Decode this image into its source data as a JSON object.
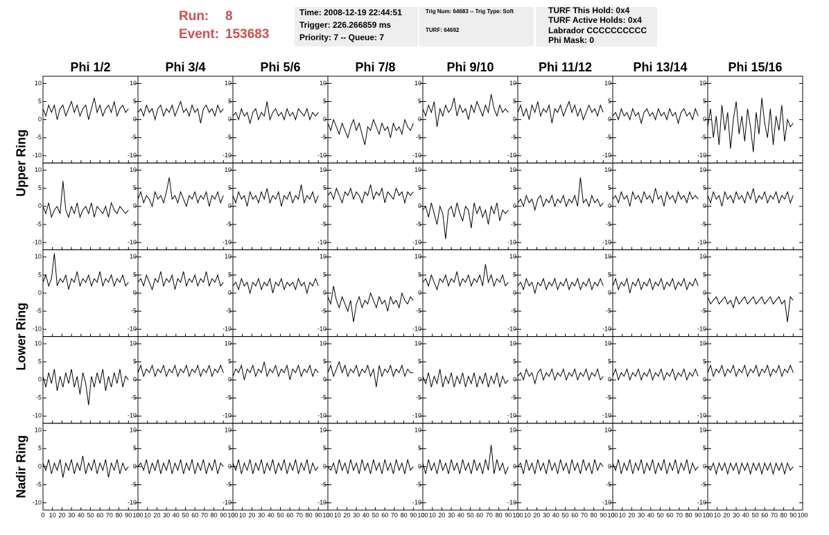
{
  "header": {
    "run_label": "Run:",
    "run": "8",
    "event_label": "Event:",
    "event": "153683",
    "box1": [
      "Time: 2008-12-19 22:44:51",
      "Trigger: 226.266859 ms",
      "Priority: 7 -- Queue: 7"
    ],
    "box2": [
      "Trig Num: 64683 -- Trig Type: Soft",
      "TURF: 64692"
    ],
    "box3": [
      "TURF This Hold: 0x4",
      "TURF Active Holds: 0x4",
      "Labrador CCCCCCCCCC",
      "Phi Mask: 0"
    ]
  },
  "chart_data": {
    "type": "line",
    "columns": [
      "Phi 1/2",
      "Phi 3/4",
      "Phi 5/6",
      "Phi 7/8",
      "Phi 9/10",
      "Phi 11/12",
      "Phi 13/14",
      "Phi 15/16"
    ],
    "rows": [
      "Upper Ring",
      "Lower Ring",
      "Nadir Ring"
    ],
    "color": "#000000",
    "xlim": [
      0,
      100
    ],
    "xticks": [
      0,
      10,
      20,
      30,
      40,
      50,
      60,
      70,
      80,
      90,
      100
    ],
    "ylim": [
      -12,
      12
    ],
    "yticks": [
      -10,
      -5,
      0,
      5,
      10
    ],
    "x": [
      0,
      3,
      6,
      9,
      12,
      15,
      18,
      21,
      24,
      27,
      30,
      33,
      36,
      39,
      42,
      45,
      48,
      51,
      54,
      57,
      60,
      63,
      66,
      69,
      72,
      75,
      78,
      81,
      84,
      87,
      90
    ],
    "panels": [
      [
        3,
        1,
        4,
        2,
        4,
        0,
        3,
        4,
        1,
        3,
        5,
        2,
        4,
        1,
        3,
        4,
        0,
        3,
        6,
        2,
        4,
        1,
        3,
        4,
        2,
        5,
        1,
        3,
        4,
        2,
        3
      ],
      [
        2,
        3,
        1,
        4,
        2,
        3,
        0,
        3,
        4,
        1,
        3,
        2,
        4,
        1,
        3,
        5,
        2,
        3,
        1,
        4,
        2,
        3,
        -1,
        3,
        4,
        2,
        3,
        1,
        4,
        2,
        3
      ],
      [
        1,
        2,
        0,
        3,
        1,
        2,
        -1,
        2,
        3,
        0,
        2,
        1,
        5,
        0,
        2,
        3,
        1,
        2,
        0,
        3,
        1,
        2,
        0,
        3,
        2,
        1,
        3,
        0,
        2,
        1,
        2
      ],
      [
        -1,
        -3,
        0,
        -2,
        -4,
        -1,
        -3,
        -5,
        -2,
        0,
        -3,
        -1,
        -4,
        -7,
        -2,
        -3,
        0,
        -2,
        -4,
        -1,
        -3,
        -2,
        -5,
        -1,
        -3,
        -2,
        -4,
        0,
        -2,
        -3,
        -1
      ],
      [
        3,
        1,
        4,
        2,
        5,
        -2,
        3,
        1,
        4,
        2,
        3,
        6,
        1,
        4,
        2,
        3,
        0,
        4,
        2,
        5,
        3,
        1,
        4,
        2,
        7,
        3,
        1,
        4,
        2,
        3,
        2
      ],
      [
        2,
        4,
        1,
        3,
        0,
        4,
        2,
        5,
        1,
        3,
        2,
        4,
        -1,
        3,
        2,
        4,
        1,
        3,
        5,
        2,
        4,
        1,
        3,
        0,
        2,
        4,
        2,
        3,
        1,
        4,
        2
      ],
      [
        1,
        2,
        0,
        3,
        1,
        2,
        0,
        3,
        1,
        2,
        -1,
        2,
        3,
        1,
        2,
        0,
        3,
        1,
        2,
        0,
        3,
        1,
        2,
        -1,
        2,
        3,
        1,
        2,
        0,
        3,
        1
      ],
      [
        -2,
        3,
        -5,
        1,
        -7,
        4,
        -3,
        2,
        -8,
        0,
        5,
        -4,
        1,
        -6,
        3,
        -2,
        -9,
        2,
        -4,
        6,
        -1,
        -5,
        3,
        -7,
        1,
        -3,
        4,
        -6,
        0,
        -2,
        -1
      ],
      [
        0,
        -2,
        1,
        -3,
        -1,
        0,
        -2,
        7,
        -1,
        -3,
        0,
        -2,
        1,
        -3,
        -1,
        0,
        -2,
        1,
        -3,
        0,
        -1,
        -2,
        0,
        -3,
        1,
        -1,
        -2,
        0,
        -1,
        -2,
        -1
      ],
      [
        2,
        4,
        1,
        3,
        2,
        0,
        4,
        2,
        3,
        1,
        4,
        8,
        2,
        3,
        1,
        4,
        2,
        0,
        3,
        2,
        4,
        1,
        3,
        2,
        4,
        0,
        3,
        2,
        4,
        1,
        3
      ],
      [
        3,
        1,
        4,
        2,
        3,
        0,
        4,
        2,
        3,
        1,
        4,
        2,
        5,
        1,
        3,
        2,
        4,
        0,
        3,
        2,
        4,
        1,
        3,
        2,
        6,
        1,
        3,
        2,
        4,
        1,
        3
      ],
      [
        3,
        4,
        2,
        5,
        3,
        1,
        4,
        3,
        5,
        2,
        4,
        3,
        1,
        4,
        3,
        6,
        2,
        4,
        3,
        5,
        1,
        4,
        3,
        2,
        5,
        3,
        4,
        1,
        4,
        3,
        4
      ],
      [
        -1,
        0,
        -3,
        1,
        -2,
        -5,
        0,
        -2,
        -9,
        -1,
        0,
        -3,
        1,
        -2,
        -4,
        0,
        -1,
        -6,
        1,
        -2,
        0,
        -3,
        -1,
        -5,
        0,
        -2,
        1,
        -4,
        -1,
        -2,
        -1
      ],
      [
        1,
        2,
        0,
        3,
        1,
        2,
        -1,
        2,
        3,
        0,
        2,
        1,
        3,
        0,
        2,
        1,
        3,
        0,
        2,
        1,
        3,
        0,
        8,
        1,
        2,
        0,
        3,
        1,
        2,
        0,
        1
      ],
      [
        2,
        3,
        1,
        4,
        2,
        3,
        0,
        4,
        2,
        3,
        1,
        4,
        2,
        3,
        1,
        5,
        2,
        3,
        0,
        4,
        2,
        3,
        1,
        4,
        2,
        3,
        1,
        4,
        2,
        3,
        2
      ],
      [
        3,
        1,
        4,
        2,
        3,
        0,
        4,
        2,
        3,
        1,
        4,
        2,
        3,
        1,
        4,
        2,
        5,
        1,
        3,
        2,
        4,
        1,
        3,
        2,
        4,
        1,
        3,
        2,
        4,
        1,
        3
      ],
      [
        3,
        5,
        2,
        4,
        11,
        2,
        4,
        3,
        5,
        1,
        4,
        3,
        6,
        2,
        4,
        3,
        5,
        2,
        4,
        3,
        6,
        2,
        4,
        3,
        5,
        2,
        4,
        3,
        5,
        2,
        3
      ],
      [
        3,
        4,
        2,
        5,
        3,
        1,
        4,
        3,
        6,
        2,
        4,
        3,
        5,
        1,
        4,
        3,
        6,
        2,
        4,
        3,
        5,
        2,
        4,
        3,
        6,
        2,
        4,
        3,
        5,
        2,
        3
      ],
      [
        2,
        3,
        1,
        4,
        2,
        3,
        0,
        3,
        2,
        4,
        1,
        3,
        2,
        4,
        0,
        3,
        2,
        4,
        1,
        3,
        2,
        3,
        1,
        4,
        2,
        3,
        0,
        3,
        2,
        4,
        2
      ],
      [
        -1,
        -3,
        2,
        -2,
        -4,
        -1,
        -3,
        -5,
        -2,
        -8,
        -3,
        -1,
        -4,
        -2,
        -3,
        0,
        -2,
        -4,
        -1,
        -3,
        -2,
        -5,
        -1,
        -3,
        -2,
        -4,
        0,
        -2,
        -3,
        -1,
        -2
      ],
      [
        3,
        4,
        2,
        5,
        3,
        1,
        4,
        3,
        5,
        2,
        4,
        3,
        6,
        2,
        4,
        3,
        5,
        2,
        4,
        3,
        5,
        2,
        8,
        3,
        5,
        2,
        4,
        3,
        5,
        2,
        3
      ],
      [
        2,
        3,
        1,
        4,
        2,
        3,
        0,
        3,
        2,
        4,
        1,
        3,
        2,
        4,
        1,
        3,
        2,
        4,
        1,
        3,
        2,
        4,
        1,
        3,
        2,
        4,
        1,
        3,
        2,
        4,
        2
      ],
      [
        2,
        4,
        1,
        3,
        2,
        4,
        0,
        3,
        2,
        4,
        1,
        3,
        2,
        4,
        1,
        3,
        2,
        4,
        1,
        3,
        2,
        4,
        1,
        3,
        2,
        4,
        1,
        3,
        2,
        4,
        2
      ],
      [
        -1,
        -3,
        -2,
        -1,
        -3,
        -2,
        -1,
        -3,
        -2,
        -4,
        -1,
        -3,
        -2,
        -1,
        -3,
        -2,
        -1,
        -3,
        -2,
        -1,
        -3,
        -2,
        -1,
        -3,
        -2,
        -1,
        -3,
        -2,
        -8,
        -1,
        -2
      ],
      [
        1,
        -2,
        2,
        -1,
        3,
        -3,
        1,
        -2,
        2,
        -1,
        3,
        -2,
        1,
        -4,
        2,
        -1,
        -7,
        1,
        -2,
        2,
        -1,
        3,
        -3,
        1,
        -2,
        2,
        -1,
        3,
        -2,
        1,
        0
      ],
      [
        2,
        4,
        1,
        3,
        2,
        4,
        1,
        3,
        2,
        4,
        1,
        3,
        2,
        4,
        1,
        3,
        2,
        4,
        1,
        3,
        2,
        4,
        1,
        3,
        2,
        4,
        1,
        3,
        2,
        4,
        2
      ],
      [
        1,
        3,
        2,
        4,
        0,
        3,
        2,
        4,
        1,
        3,
        2,
        5,
        1,
        3,
        2,
        4,
        1,
        3,
        2,
        4,
        0,
        3,
        2,
        4,
        1,
        3,
        2,
        4,
        1,
        3,
        2
      ],
      [
        2,
        4,
        1,
        3,
        5,
        2,
        4,
        1,
        3,
        2,
        4,
        1,
        3,
        2,
        4,
        1,
        3,
        -2,
        4,
        1,
        3,
        2,
        4,
        1,
        3,
        2,
        4,
        1,
        3,
        2,
        2
      ],
      [
        1,
        -1,
        2,
        -2,
        1,
        -1,
        3,
        -2,
        1,
        -1,
        2,
        -2,
        1,
        -1,
        2,
        -2,
        1,
        -1,
        2,
        -2,
        1,
        -1,
        2,
        -2,
        1,
        -1,
        2,
        -2,
        1,
        -1,
        0
      ],
      [
        1,
        2,
        0,
        3,
        1,
        2,
        -1,
        2,
        3,
        0,
        2,
        1,
        3,
        0,
        2,
        1,
        3,
        0,
        2,
        1,
        3,
        0,
        2,
        1,
        3,
        0,
        2,
        1,
        3,
        0,
        1
      ],
      [
        1,
        3,
        0,
        2,
        1,
        3,
        0,
        2,
        1,
        3,
        0,
        2,
        1,
        3,
        0,
        2,
        1,
        3,
        0,
        2,
        1,
        3,
        0,
        2,
        1,
        3,
        0,
        2,
        1,
        3,
        1
      ],
      [
        2,
        4,
        1,
        3,
        2,
        4,
        1,
        3,
        2,
        4,
        1,
        3,
        2,
        4,
        1,
        3,
        2,
        4,
        1,
        3,
        2,
        4,
        1,
        3,
        2,
        4,
        1,
        3,
        2,
        4,
        2
      ],
      [
        1,
        -1,
        2,
        -2,
        1,
        -1,
        2,
        -3,
        1,
        -1,
        2,
        -2,
        1,
        -1,
        3,
        -2,
        1,
        -1,
        2,
        -2,
        1,
        -1,
        2,
        -3,
        1,
        -1,
        2,
        -2,
        1,
        -1,
        0
      ],
      [
        0,
        1,
        -1,
        2,
        -2,
        1,
        -1,
        2,
        -2,
        1,
        -1,
        2,
        -2,
        1,
        -1,
        2,
        -2,
        1,
        -1,
        2,
        -2,
        1,
        -1,
        2,
        -2,
        1,
        -1,
        2,
        -2,
        1,
        0
      ],
      [
        1,
        -1,
        2,
        -2,
        1,
        -1,
        2,
        -2,
        1,
        -1,
        2,
        -2,
        1,
        -1,
        2,
        -2,
        1,
        -1,
        2,
        -2,
        1,
        -1,
        2,
        -2,
        1,
        -1,
        2,
        -2,
        1,
        -1,
        0
      ],
      [
        0,
        -1,
        1,
        -2,
        2,
        -1,
        1,
        -2,
        2,
        -1,
        1,
        -2,
        2,
        -1,
        1,
        -2,
        2,
        -1,
        1,
        -2,
        2,
        -1,
        1,
        -2,
        2,
        -1,
        1,
        -2,
        2,
        -1,
        0
      ],
      [
        1,
        -2,
        2,
        -1,
        1,
        -2,
        2,
        -1,
        1,
        -2,
        2,
        -1,
        1,
        -2,
        2,
        -1,
        1,
        -2,
        2,
        -1,
        1,
        -2,
        2,
        -1,
        6,
        -2,
        2,
        -1,
        1,
        -2,
        0
      ],
      [
        0,
        1,
        -2,
        2,
        -1,
        1,
        -2,
        2,
        -1,
        1,
        -2,
        2,
        -1,
        1,
        -2,
        2,
        -1,
        1,
        -2,
        2,
        -1,
        1,
        -2,
        2,
        -1,
        1,
        -2,
        2,
        -1,
        1,
        0
      ],
      [
        1,
        -1,
        2,
        -2,
        1,
        -1,
        2,
        -2,
        1,
        -1,
        2,
        -2,
        1,
        -1,
        2,
        -2,
        1,
        -1,
        2,
        -2,
        1,
        -1,
        2,
        -2,
        1,
        -1,
        2,
        -2,
        1,
        -1,
        0
      ],
      [
        0,
        -1,
        1,
        -2,
        1,
        -1,
        1,
        -2,
        1,
        -1,
        1,
        -2,
        1,
        -1,
        1,
        -2,
        1,
        -1,
        1,
        -2,
        1,
        -1,
        1,
        -2,
        1,
        -1,
        1,
        -2,
        1,
        -1,
        0
      ]
    ]
  }
}
